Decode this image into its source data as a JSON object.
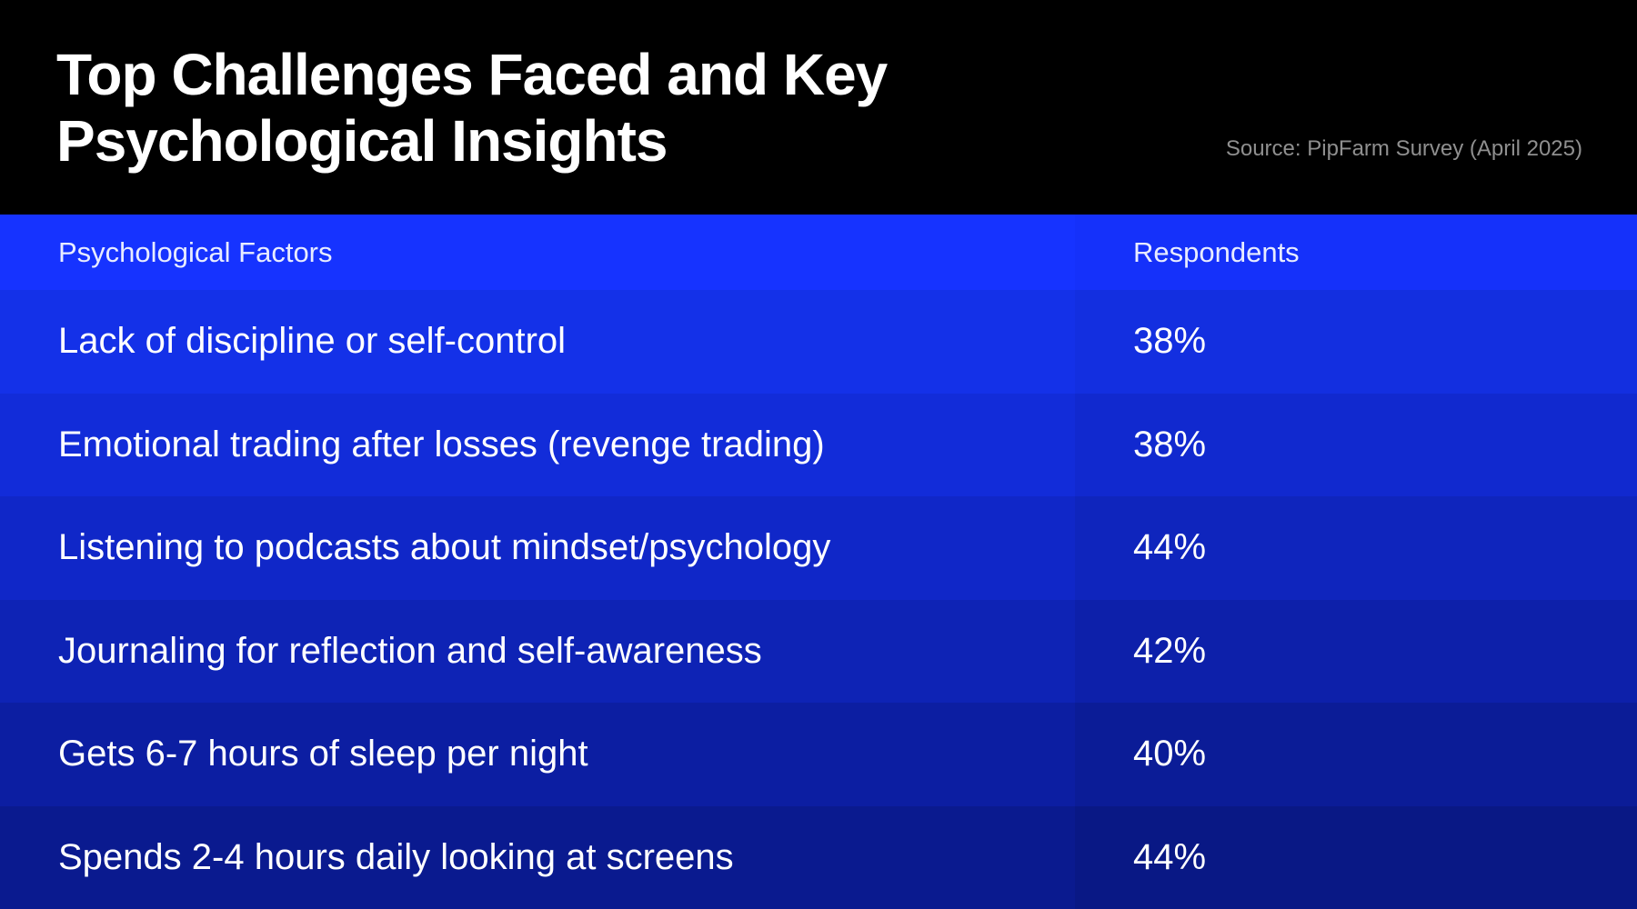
{
  "title_line1": "Top Challenges Faced and Key",
  "title_line2": "Psychological Insights",
  "source": "Source: PipFarm Survey (April 2025)",
  "chart_data": {
    "type": "table",
    "columns": [
      "Psychological Factors",
      "Respondents"
    ],
    "rows": [
      {
        "factor": "Lack of discipline or self-control",
        "respondents": "38%",
        "value": 38
      },
      {
        "factor": "Emotional trading after losses (revenge trading)",
        "respondents": "38%",
        "value": 38
      },
      {
        "factor": "Listening to podcasts about mindset/psychology",
        "respondents": "44%",
        "value": 44
      },
      {
        "factor": "Journaling for reflection and self-awareness",
        "respondents": "42%",
        "value": 42
      },
      {
        "factor": "Gets 6-7 hours of sleep per night",
        "respondents": "40%",
        "value": 40
      },
      {
        "factor": "Spends 2-4 hours daily looking at screens",
        "respondents": "44%",
        "value": 44
      }
    ]
  },
  "colors": {
    "header_left": "#1633ff",
    "header_right": "#1531fa",
    "rows_left": [
      "#1431e8",
      "#122cd9",
      "#1027c8",
      "#0e23b5",
      "#0c1ea2",
      "#0a1a8f"
    ],
    "rows_right": [
      "#132fe0",
      "#1129cf",
      "#0f25bd",
      "#0d20aa",
      "#0b1c97",
      "#091885"
    ]
  }
}
